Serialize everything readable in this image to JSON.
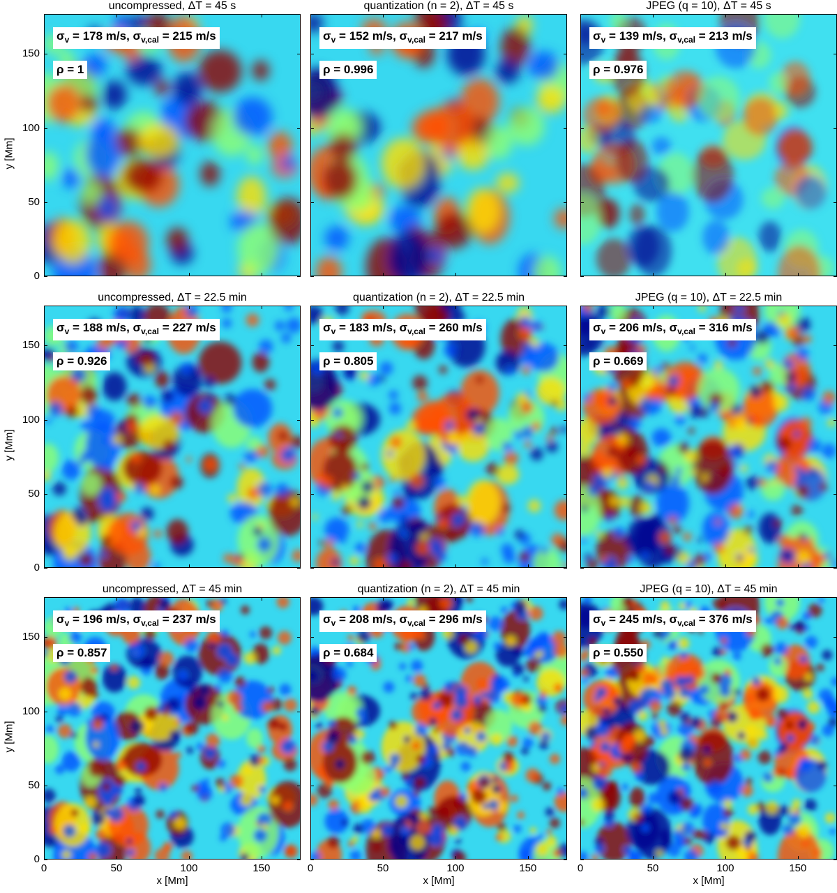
{
  "chart_data": {
    "type": "heatmap",
    "xlabel": "x [Mm]",
    "ylabel": "y [Mm]",
    "xlim": [
      0,
      177
    ],
    "ylim": [
      0,
      177
    ],
    "xticks": [
      "0",
      "50",
      "100",
      "150"
    ],
    "yticks": [
      "0",
      "50",
      "100",
      "150"
    ],
    "panels": [
      {
        "title": "uncompressed, ΔT = 45 s",
        "sigma_v": "178 m/s",
        "sigma_v_cal": "215 m/s",
        "rho": "1"
      },
      {
        "title": "quantization (n = 2), ΔT = 45 s",
        "sigma_v": "152 m/s",
        "sigma_v_cal": "217 m/s",
        "rho": "0.996"
      },
      {
        "title": "JPEG (q = 10), ΔT = 45 s",
        "sigma_v": "139 m/s",
        "sigma_v_cal": "213 m/s",
        "rho": "0.976"
      },
      {
        "title": "uncompressed, ΔT = 22.5 min",
        "sigma_v": "188 m/s",
        "sigma_v_cal": "227 m/s",
        "rho": "0.926"
      },
      {
        "title": "quantization (n = 2), ΔT = 22.5 min",
        "sigma_v": "183 m/s",
        "sigma_v_cal": "260 m/s",
        "rho": "0.805"
      },
      {
        "title": "JPEG (q = 10), ΔT = 22.5 min",
        "sigma_v": "206 m/s",
        "sigma_v_cal": "316 m/s",
        "rho": "0.669"
      },
      {
        "title": "uncompressed, ΔT = 45 min",
        "sigma_v": "196 m/s",
        "sigma_v_cal": "237 m/s",
        "rho": "0.857"
      },
      {
        "title": "quantization (n = 2), ΔT = 45 min",
        "sigma_v": "208 m/s",
        "sigma_v_cal": "296 m/s",
        "rho": "0.684"
      },
      {
        "title": "JPEG (q = 10), ΔT = 45 min",
        "sigma_v": "245 m/s",
        "sigma_v_cal": "376 m/s",
        "rho": "0.550"
      }
    ],
    "colormap": [
      "#00008f",
      "#0050ff",
      "#00dfff",
      "#8fff70",
      "#ffdf00",
      "#ff5000",
      "#8f0000"
    ]
  }
}
